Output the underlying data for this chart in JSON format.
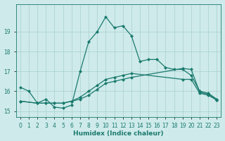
{
  "xlabel": "Humidex (Indice chaleur)",
  "bg_color": "#ceeaea",
  "grid_color": "#a8d0ce",
  "line_color": "#1a7a6e",
  "xlim": [
    -0.5,
    23.5
  ],
  "ylim": [
    14.7,
    20.4
  ],
  "xticks": [
    0,
    1,
    2,
    3,
    4,
    5,
    6,
    7,
    8,
    9,
    10,
    11,
    12,
    13,
    14,
    15,
    16,
    17,
    18,
    19,
    20,
    21,
    22,
    23
  ],
  "yticks": [
    15,
    16,
    17,
    18,
    19
  ],
  "series": [
    {
      "x": [
        0,
        1,
        2,
        3,
        4,
        5,
        6,
        7,
        8,
        9,
        10,
        11,
        12,
        13,
        14,
        15,
        16,
        17,
        18,
        19,
        20,
        21,
        22,
        23
      ],
      "y": [
        16.2,
        16.0,
        15.4,
        15.6,
        15.2,
        15.15,
        15.3,
        17.0,
        18.5,
        19.0,
        19.75,
        19.2,
        19.3,
        18.8,
        17.5,
        17.6,
        17.6,
        17.2,
        17.1,
        17.1,
        16.8,
        16.0,
        15.9,
        15.6
      ]
    },
    {
      "x": [
        0,
        2,
        3,
        4,
        5,
        6,
        7,
        8,
        9,
        10,
        11,
        12,
        13,
        19,
        20,
        21,
        22,
        23
      ],
      "y": [
        15.5,
        15.4,
        15.4,
        15.4,
        15.4,
        15.5,
        15.7,
        16.0,
        16.3,
        16.6,
        16.7,
        16.8,
        16.9,
        16.6,
        16.6,
        15.9,
        15.8,
        15.55
      ]
    },
    {
      "x": [
        0,
        2,
        3,
        4,
        5,
        6,
        7,
        8,
        9,
        10,
        11,
        12,
        13,
        19,
        20,
        21,
        22,
        23
      ],
      "y": [
        15.5,
        15.4,
        15.4,
        15.4,
        15.4,
        15.5,
        15.6,
        15.8,
        16.1,
        16.4,
        16.5,
        16.6,
        16.7,
        17.15,
        17.1,
        15.95,
        15.85,
        15.55
      ]
    }
  ],
  "marker": "D",
  "markersize": 2.0,
  "linewidth": 0.9,
  "tick_fontsize": 5.5,
  "label_fontsize": 6.5
}
